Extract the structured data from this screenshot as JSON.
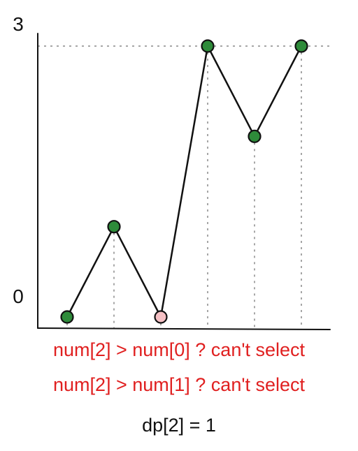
{
  "chart_data": {
    "type": "line",
    "y_tick_labels": [
      "0",
      "3"
    ],
    "ylim": [
      0,
      3
    ],
    "x": [
      0,
      1,
      2,
      3,
      4,
      5
    ],
    "values": [
      0,
      1,
      0,
      3,
      2,
      3
    ],
    "point_colors": [
      "#2e8b3a",
      "#2e8b3a",
      "#f5c0c4",
      "#2e8b3a",
      "#2e8b3a",
      "#2e8b3a"
    ],
    "highlighted_index": 2,
    "line_color": "#111111",
    "grid": "dotted guide lines"
  },
  "annotations": {
    "line1": "num[2] > num[0] ? can't select",
    "line2": "num[2] > num[1] ? can't select",
    "result": "dp[2] = 1"
  },
  "colors": {
    "annotation_red": "#e02020",
    "text_black": "#111111"
  }
}
